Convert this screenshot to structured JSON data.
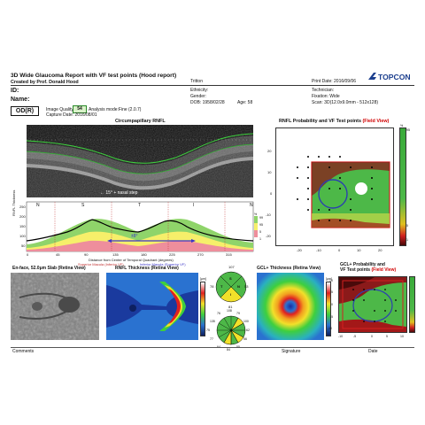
{
  "header": {
    "title": "3D Wide Glaucoma Report with VF test points (Hood report)",
    "created_by": "Created by Prof. Donald Hood",
    "brand": "TOPCON",
    "name_middle": "Tritton",
    "print_date": "Print Date: 2016/09/06"
  },
  "patient": {
    "id_label": "ID:",
    "name_label": "Name:",
    "ethnicity": "Ethnicity:",
    "gender": "Gender:",
    "dob": "DOB: 1958/02/28",
    "age": "Age: 58",
    "technician": "Technician:",
    "fixation": "Fixation: Wide",
    "scan": "Scan: 3D(12.0x9.0mm - 512x128)"
  },
  "exam": {
    "eye": "OD(R)",
    "image_quality_label": "Image Quality",
    "image_quality": "54",
    "analysis_mode": "Analysis mode:Fine (2.0.7)",
    "capture_date": "Capture Date: 2016/08/01"
  },
  "titles": {
    "circumpapillary": "Circumpapillary RNFL",
    "rnfl_prob_prefix": "RNFL Probability and VF Test points ",
    "field_view": "(Field View)",
    "enface": "En-face, 52.0μm Slab (Retina View)",
    "rnfl_thickness": "RNFL Thickness (Retina View)",
    "gcl_thickness": "GCL+ Thickness (Retina View)",
    "gcl_prob_line1": "GCL+ Probability and",
    "gcl_prob_line2": "VF Test points "
  },
  "profile": {
    "span_label": "← 15° + nasal step",
    "arrow_label": "±8°",
    "quadrants": [
      "N",
      "S",
      "T",
      "I",
      "N"
    ],
    "xticks": [
      "0",
      "45",
      "90",
      "135",
      "180",
      "225",
      "270",
      "315"
    ],
    "yticks": [
      "250",
      "200",
      "150",
      "100",
      "50"
    ],
    "ylabel": "RNFL Thickness",
    "xlabel": "Distance from Center of Temporal Quadrant (degrees)",
    "legend_sup": "Superior Macula (Inferior VF)",
    "legend_inf": "Inferior Macula (Superior VF)",
    "legend_pct": [
      "%",
      "99",
      "95",
      "5",
      "1"
    ]
  },
  "vf_axes": {
    "yticks": [
      "20",
      "10",
      "0",
      "-10",
      "-20"
    ],
    "xticks": [
      "-20",
      "-10",
      "0",
      "10",
      "20"
    ]
  },
  "gcl_axes": {
    "yticks": [
      "10",
      "5",
      "0",
      "-5",
      "-10"
    ],
    "xticks": [
      "-10",
      "-5",
      "0",
      "5",
      "10"
    ]
  },
  "sectors": {
    "quad": [
      "107",
      "78",
      "53",
      "81"
    ],
    "quad_letters": [
      "S",
      "T",
      "N",
      "I"
    ],
    "clock": [
      "108",
      "79",
      "100",
      "62",
      "56",
      "55",
      "84",
      "64",
      "77",
      "75",
      "135",
      "76"
    ]
  },
  "colorbar_rnfl": [
    "[μm]",
    "300",
    "225",
    "150",
    "75",
    "0"
  ],
  "colorbar_gcl": [
    "[μm]",
    "225",
    "150",
    "75",
    "0"
  ],
  "prob_scale": [
    "%",
    "95",
    "5",
    "1"
  ],
  "footer": {
    "comments": "Comments",
    "signature": "Signature",
    "date": "Date"
  }
}
